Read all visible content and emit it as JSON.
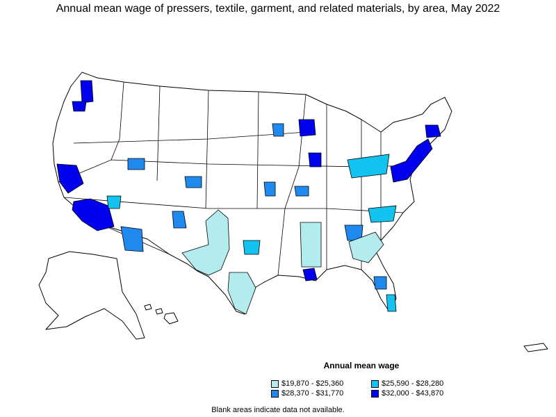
{
  "title": "Annual mean wage of pressers, textile, garment, and related materials, by area, May 2022",
  "legend": {
    "title": "Annual mean wage",
    "items": [
      {
        "label": "$19,870 - $25,360",
        "color": "#b3ecee"
      },
      {
        "label": "$25,590 - $28,280",
        "color": "#12c3f0"
      },
      {
        "label": "$28,370 - $31,770",
        "color": "#2089ee"
      },
      {
        "label": "$32,000 - $43,870",
        "color": "#0000ee"
      }
    ]
  },
  "footnote": "Blank areas indicate data not available.",
  "colors": {
    "outline": "#000000",
    "background": "#ffffff",
    "no_data": "#ffffff"
  }
}
